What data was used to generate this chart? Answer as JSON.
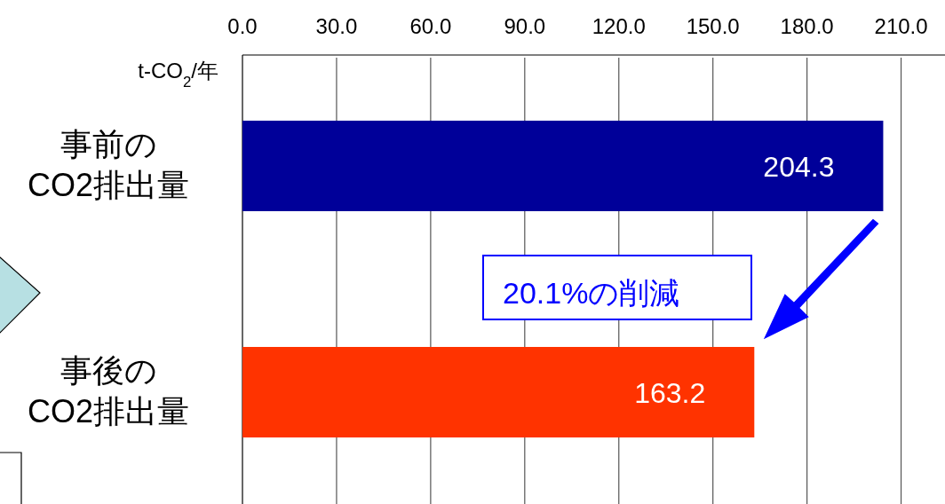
{
  "chart_data": {
    "type": "bar",
    "orientation": "horizontal",
    "ylabel": "t-CO$_{2}$/年",
    "categories": [
      "事前の\nCO2排出量",
      "事後の\nCO2排出量"
    ],
    "values": [
      204.3,
      163.2
    ],
    "colors": [
      "#000099",
      "#ff3300"
    ],
    "data_labels": true,
    "xlim": [
      0,
      224
    ],
    "xticks": [
      {
        "value": 0,
        "label": "0.0"
      },
      {
        "value": 30,
        "label": "30.0"
      },
      {
        "value": 60,
        "label": "60.0"
      },
      {
        "value": 90,
        "label": "90.0"
      },
      {
        "value": 120,
        "label": "120.0"
      },
      {
        "value": 150,
        "label": "150.0"
      },
      {
        "value": 180,
        "label": "180.0"
      },
      {
        "value": 210,
        "label": "210.0"
      }
    ],
    "grid": "x",
    "annotations": [
      "20.1%の削減"
    ]
  }
}
